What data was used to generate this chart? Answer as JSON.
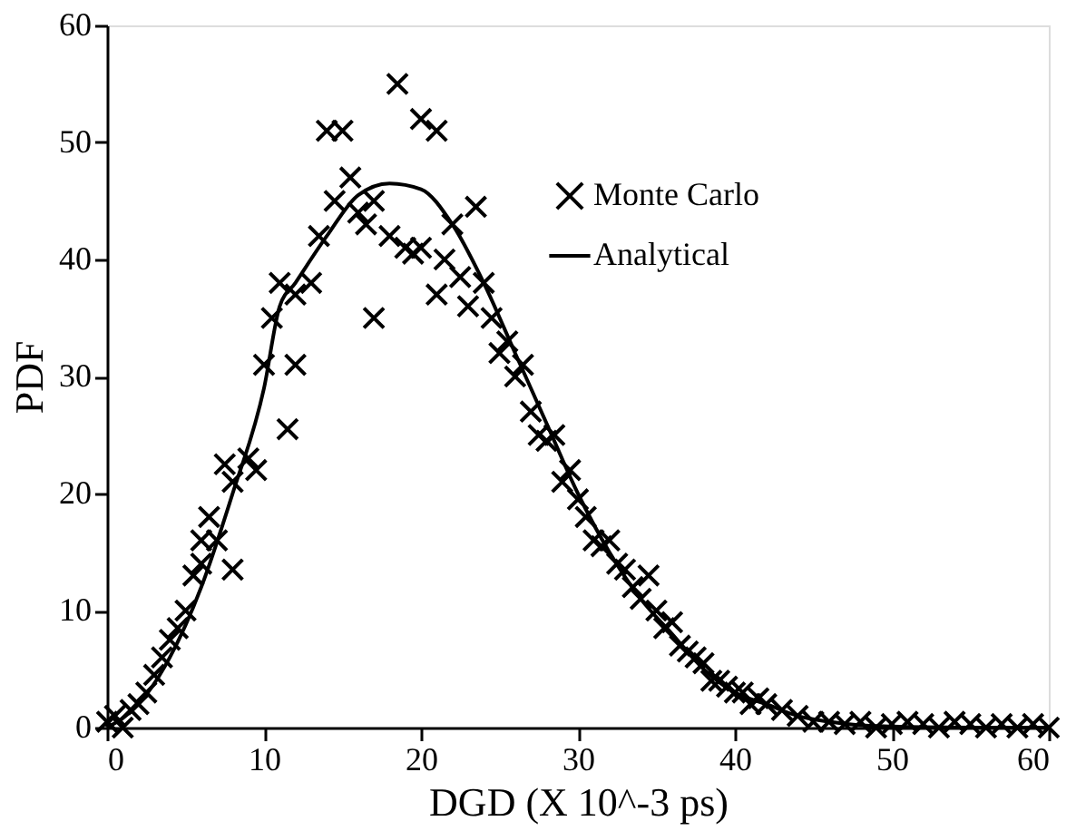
{
  "chart_data": {
    "type": "scatter",
    "xlabel": "DGD (X 10^-3 ps)",
    "ylabel": "PDF",
    "xlim": [
      0,
      60
    ],
    "ylim": [
      0,
      60
    ],
    "xticks": [
      0,
      10,
      20,
      30,
      40,
      50,
      60
    ],
    "yticks": [
      0,
      10,
      20,
      30,
      40,
      50,
      60
    ],
    "grid": false,
    "legend": "top right",
    "marker": "cross",
    "series": [
      {
        "name": "Monte Carlo",
        "color": "#000000",
        "x": [
          0,
          0.5,
          1,
          1.5,
          2,
          2.5,
          3,
          3.5,
          4,
          4.5,
          5,
          5.5,
          6,
          6,
          6.5,
          7,
          7.5,
          8,
          8,
          9,
          9.5,
          10,
          10.5,
          11,
          11.5,
          12,
          12,
          13,
          13.5,
          14,
          14.5,
          15,
          15.5,
          16,
          16.5,
          17,
          17,
          18,
          18.5,
          19,
          19.5,
          20,
          20,
          21,
          21,
          21.5,
          22,
          22.5,
          23,
          23.5,
          24,
          24.5,
          25,
          25.5,
          26,
          26.5,
          27,
          27.5,
          28,
          28.5,
          29,
          29.5,
          30,
          30.5,
          31,
          31.5,
          32,
          32.5,
          33,
          33.5,
          34,
          34.5,
          35,
          35.5,
          36,
          36.5,
          37,
          37.5,
          38,
          38.5,
          39,
          39.5,
          40,
          40.5,
          41,
          41.5,
          42,
          43,
          44,
          45,
          46,
          47,
          48,
          49,
          50,
          51,
          52,
          53,
          54,
          55,
          56,
          57,
          58,
          59,
          60
        ],
        "values": [
          0.5,
          1,
          0,
          1.5,
          2,
          3,
          4.5,
          6,
          7.5,
          8.5,
          10,
          13,
          14,
          16,
          18,
          16,
          22.5,
          13.5,
          21,
          23,
          22,
          31,
          35,
          38,
          25.5,
          31,
          37,
          38,
          42,
          51,
          45,
          51,
          47,
          44,
          43,
          35,
          45,
          42,
          55,
          41,
          40.5,
          52,
          41,
          37,
          51,
          40,
          43,
          38.5,
          36,
          44.5,
          38,
          35,
          32,
          33,
          30,
          31,
          27,
          25,
          24.5,
          25,
          21,
          22,
          19.5,
          18,
          16,
          15.5,
          16,
          14,
          13.5,
          12,
          11,
          13,
          10,
          8.5,
          9,
          7,
          6.5,
          6,
          5.5,
          4,
          4,
          3.5,
          3,
          3,
          2,
          2.5,
          2,
          1.5,
          1,
          0.5,
          0.5,
          0.3,
          0.5,
          0,
          0.3,
          0.5,
          0.3,
          0,
          0.5,
          0.3,
          0,
          0.3,
          0,
          0.3,
          0
        ]
      },
      {
        "name": "Analytical",
        "type": "line",
        "color": "#000000",
        "line_style": "solid",
        "marker": "none",
        "x": [
          0,
          2,
          4,
          6,
          8,
          10,
          11,
          12,
          14,
          16,
          18,
          20,
          22,
          24,
          26,
          28,
          30,
          32,
          34,
          36,
          38,
          40,
          42,
          44,
          46,
          48,
          50,
          55,
          60
        ],
        "values": [
          0,
          2,
          6,
          12,
          20,
          29,
          36,
          38,
          42,
          45.5,
          46.5,
          46,
          43,
          38,
          32,
          26,
          20,
          15,
          11,
          8,
          5,
          3,
          2,
          1,
          0.5,
          0.2,
          0.1,
          0,
          0
        ]
      }
    ]
  }
}
